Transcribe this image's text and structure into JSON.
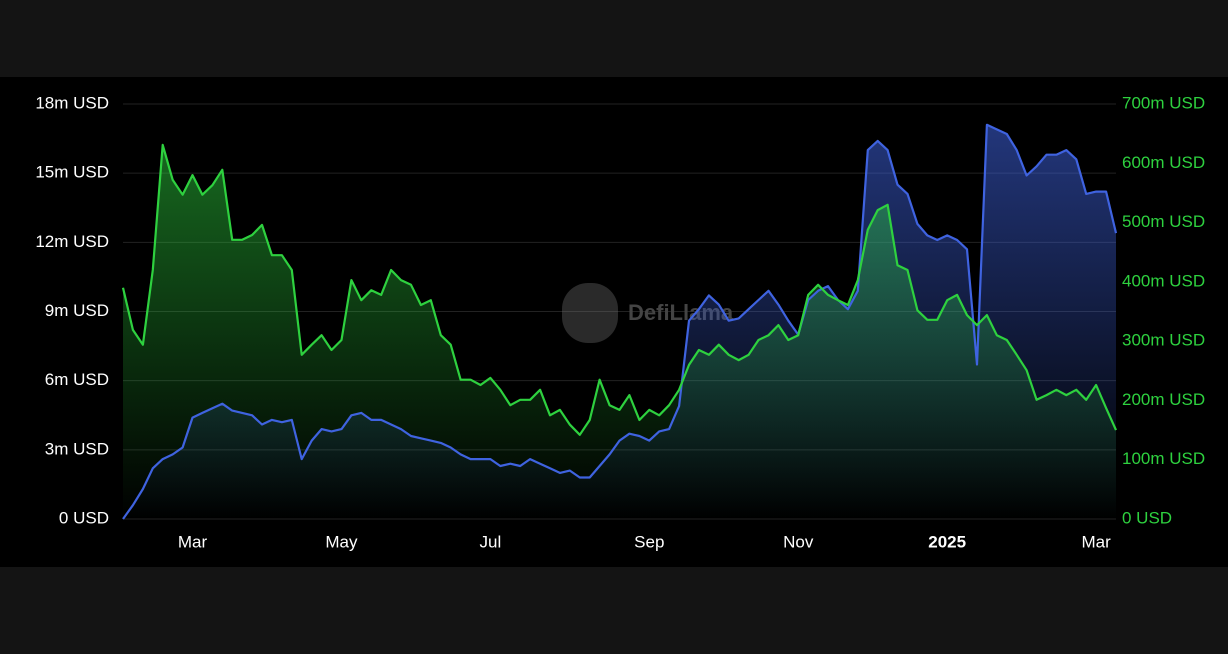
{
  "chart_data": {
    "type": "line",
    "watermark": "DefiLlama",
    "categories": [
      null,
      null,
      null,
      null,
      null,
      null,
      null,
      "Mar",
      null,
      null,
      null,
      null,
      null,
      null,
      null,
      null,
      null,
      null,
      null,
      null,
      null,
      null,
      "May",
      null,
      null,
      null,
      null,
      null,
      null,
      null,
      null,
      null,
      null,
      null,
      null,
      null,
      null,
      "Jul",
      null,
      null,
      null,
      null,
      null,
      null,
      null,
      null,
      null,
      null,
      null,
      null,
      null,
      null,
      null,
      "Sep",
      null,
      null,
      null,
      null,
      null,
      null,
      null,
      null,
      null,
      null,
      null,
      null,
      null,
      null,
      "Nov",
      null,
      null,
      null,
      null,
      null,
      null,
      null,
      null,
      null,
      null,
      null,
      null,
      null,
      null,
      "2025",
      null,
      null,
      null,
      null,
      null,
      null,
      null,
      null,
      null,
      null,
      null,
      null,
      null,
      null,
      "Mar",
      null,
      null
    ],
    "series": [
      {
        "color": "#3f63e0",
        "values": [
          0,
          600000,
          1300000,
          2200000,
          2600000,
          2800000,
          3100000,
          4400000,
          4600000,
          4800000,
          5000000,
          4700000,
          4600000,
          4500000,
          4100000,
          4300000,
          4200000,
          4300000,
          2600000,
          3400000,
          3900000,
          3800000,
          3900000,
          4500000,
          4600000,
          4300000,
          4300000,
          4100000,
          3900000,
          3600000,
          3500000,
          3400000,
          3300000,
          3100000,
          2800000,
          2600000,
          2600000,
          2600000,
          2300000,
          2400000,
          2300000,
          2600000,
          2400000,
          2200000,
          2000000,
          2100000,
          1800000,
          1800000,
          2300000,
          2800000,
          3400000,
          3700000,
          3600000,
          3400000,
          3800000,
          3900000,
          4900000,
          8600000,
          9100000,
          9700000,
          9300000,
          8600000,
          8700000,
          9100000,
          9500000,
          9900000,
          9300000,
          8600000,
          8000000,
          9500000,
          9900000,
          10100000,
          9500000,
          9100000,
          9900000,
          16000000,
          16400000,
          16000000,
          14500000,
          14100000,
          12800000,
          12300000,
          12100000,
          12300000,
          12100000,
          11700000,
          6700000,
          17100000,
          16900000,
          16700000,
          16000000,
          14900000,
          15300000,
          15800000,
          15800000,
          16000000,
          15600000,
          14100000,
          14200000,
          14200000,
          12400000
        ]
      },
      {
        "color": "#2ed13f",
        "axis": "y2",
        "values": [
          390000000,
          319000000,
          294000000,
          420000000,
          631000000,
          572000000,
          547000000,
          580000000,
          547000000,
          563000000,
          589000000,
          471000000,
          471000000,
          479000000,
          496000000,
          445000000,
          445000000,
          420000000,
          277000000,
          294000000,
          310000000,
          285000000,
          302000000,
          403000000,
          369000000,
          386000000,
          378000000,
          420000000,
          403000000,
          395000000,
          361000000,
          369000000,
          310000000,
          294000000,
          235000000,
          235000000,
          226000000,
          238000000,
          218000000,
          192000000,
          201000000,
          201000000,
          218000000,
          175000000,
          184000000,
          159000000,
          142000000,
          167000000,
          235000000,
          192000000,
          184000000,
          209000000,
          167000000,
          184000000,
          175000000,
          192000000,
          218000000,
          260000000,
          285000000,
          277000000,
          294000000,
          277000000,
          268000000,
          277000000,
          302000000,
          310000000,
          327000000,
          302000000,
          310000000,
          378000000,
          395000000,
          378000000,
          369000000,
          361000000,
          403000000,
          488000000,
          521000000,
          530000000,
          428000000,
          420000000,
          352000000,
          336000000,
          336000000,
          369000000,
          378000000,
          344000000,
          327000000,
          344000000,
          310000000,
          302000000,
          277000000,
          251000000,
          201000000,
          209000000,
          218000000,
          209000000,
          218000000,
          201000000,
          226000000,
          187000000,
          150000000
        ]
      }
    ],
    "ylim": [
      0,
      18000000
    ],
    "yticks": [
      {
        "value": 0,
        "label": "0 USD"
      },
      {
        "value": 3000000,
        "label": "3m USD"
      },
      {
        "value": 6000000,
        "label": "6m USD"
      },
      {
        "value": 9000000,
        "label": "9m USD"
      },
      {
        "value": 12000000,
        "label": "12m USD"
      },
      {
        "value": 15000000,
        "label": "15m USD"
      },
      {
        "value": 18000000,
        "label": "18m USD"
      }
    ],
    "y2lim": [
      0,
      700000000
    ],
    "y2ticks": [
      {
        "value": 0,
        "label": "0 USD"
      },
      {
        "value": 100000000,
        "label": "100m USD"
      },
      {
        "value": 200000000,
        "label": "200m USD"
      },
      {
        "value": 300000000,
        "label": "300m USD"
      },
      {
        "value": 400000000,
        "label": "400m USD"
      },
      {
        "value": 500000000,
        "label": "500m USD"
      },
      {
        "value": 600000000,
        "label": "600m USD"
      },
      {
        "value": 700000000,
        "label": "700m USD"
      }
    ],
    "y2_label_color": "#2ed13f",
    "grid": true
  }
}
